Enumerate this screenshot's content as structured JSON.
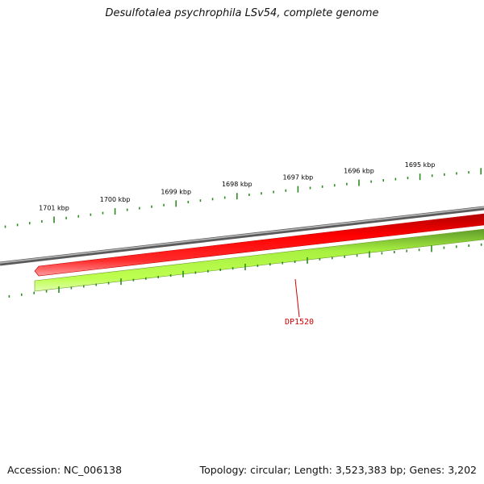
{
  "title": "Desulfotalea psychrophila LSv54, complete genome",
  "footer": {
    "accession": "Accession: NC_006138",
    "summary": "Topology: circular; Length: 3,523,383 bp; Genes: 3,202"
  },
  "scale": {
    "labels": [
      "1701 kbp",
      "1700 kbp",
      "1699 kbp",
      "1698 kbp",
      "1697 kbp",
      "1696 kbp",
      "1695 kbp"
    ]
  },
  "genes": [
    {
      "name": "DP1520",
      "strand": "forward",
      "color": "#ff0000"
    },
    {
      "name": "",
      "strand": "reverse",
      "color": "#b0ff40"
    }
  ],
  "colors": {
    "backbone": "#808080",
    "forward_gene": "#ff0000",
    "reverse_gene": "#b0ff40",
    "ticks": "#2e8b22",
    "label": "#d40000"
  }
}
